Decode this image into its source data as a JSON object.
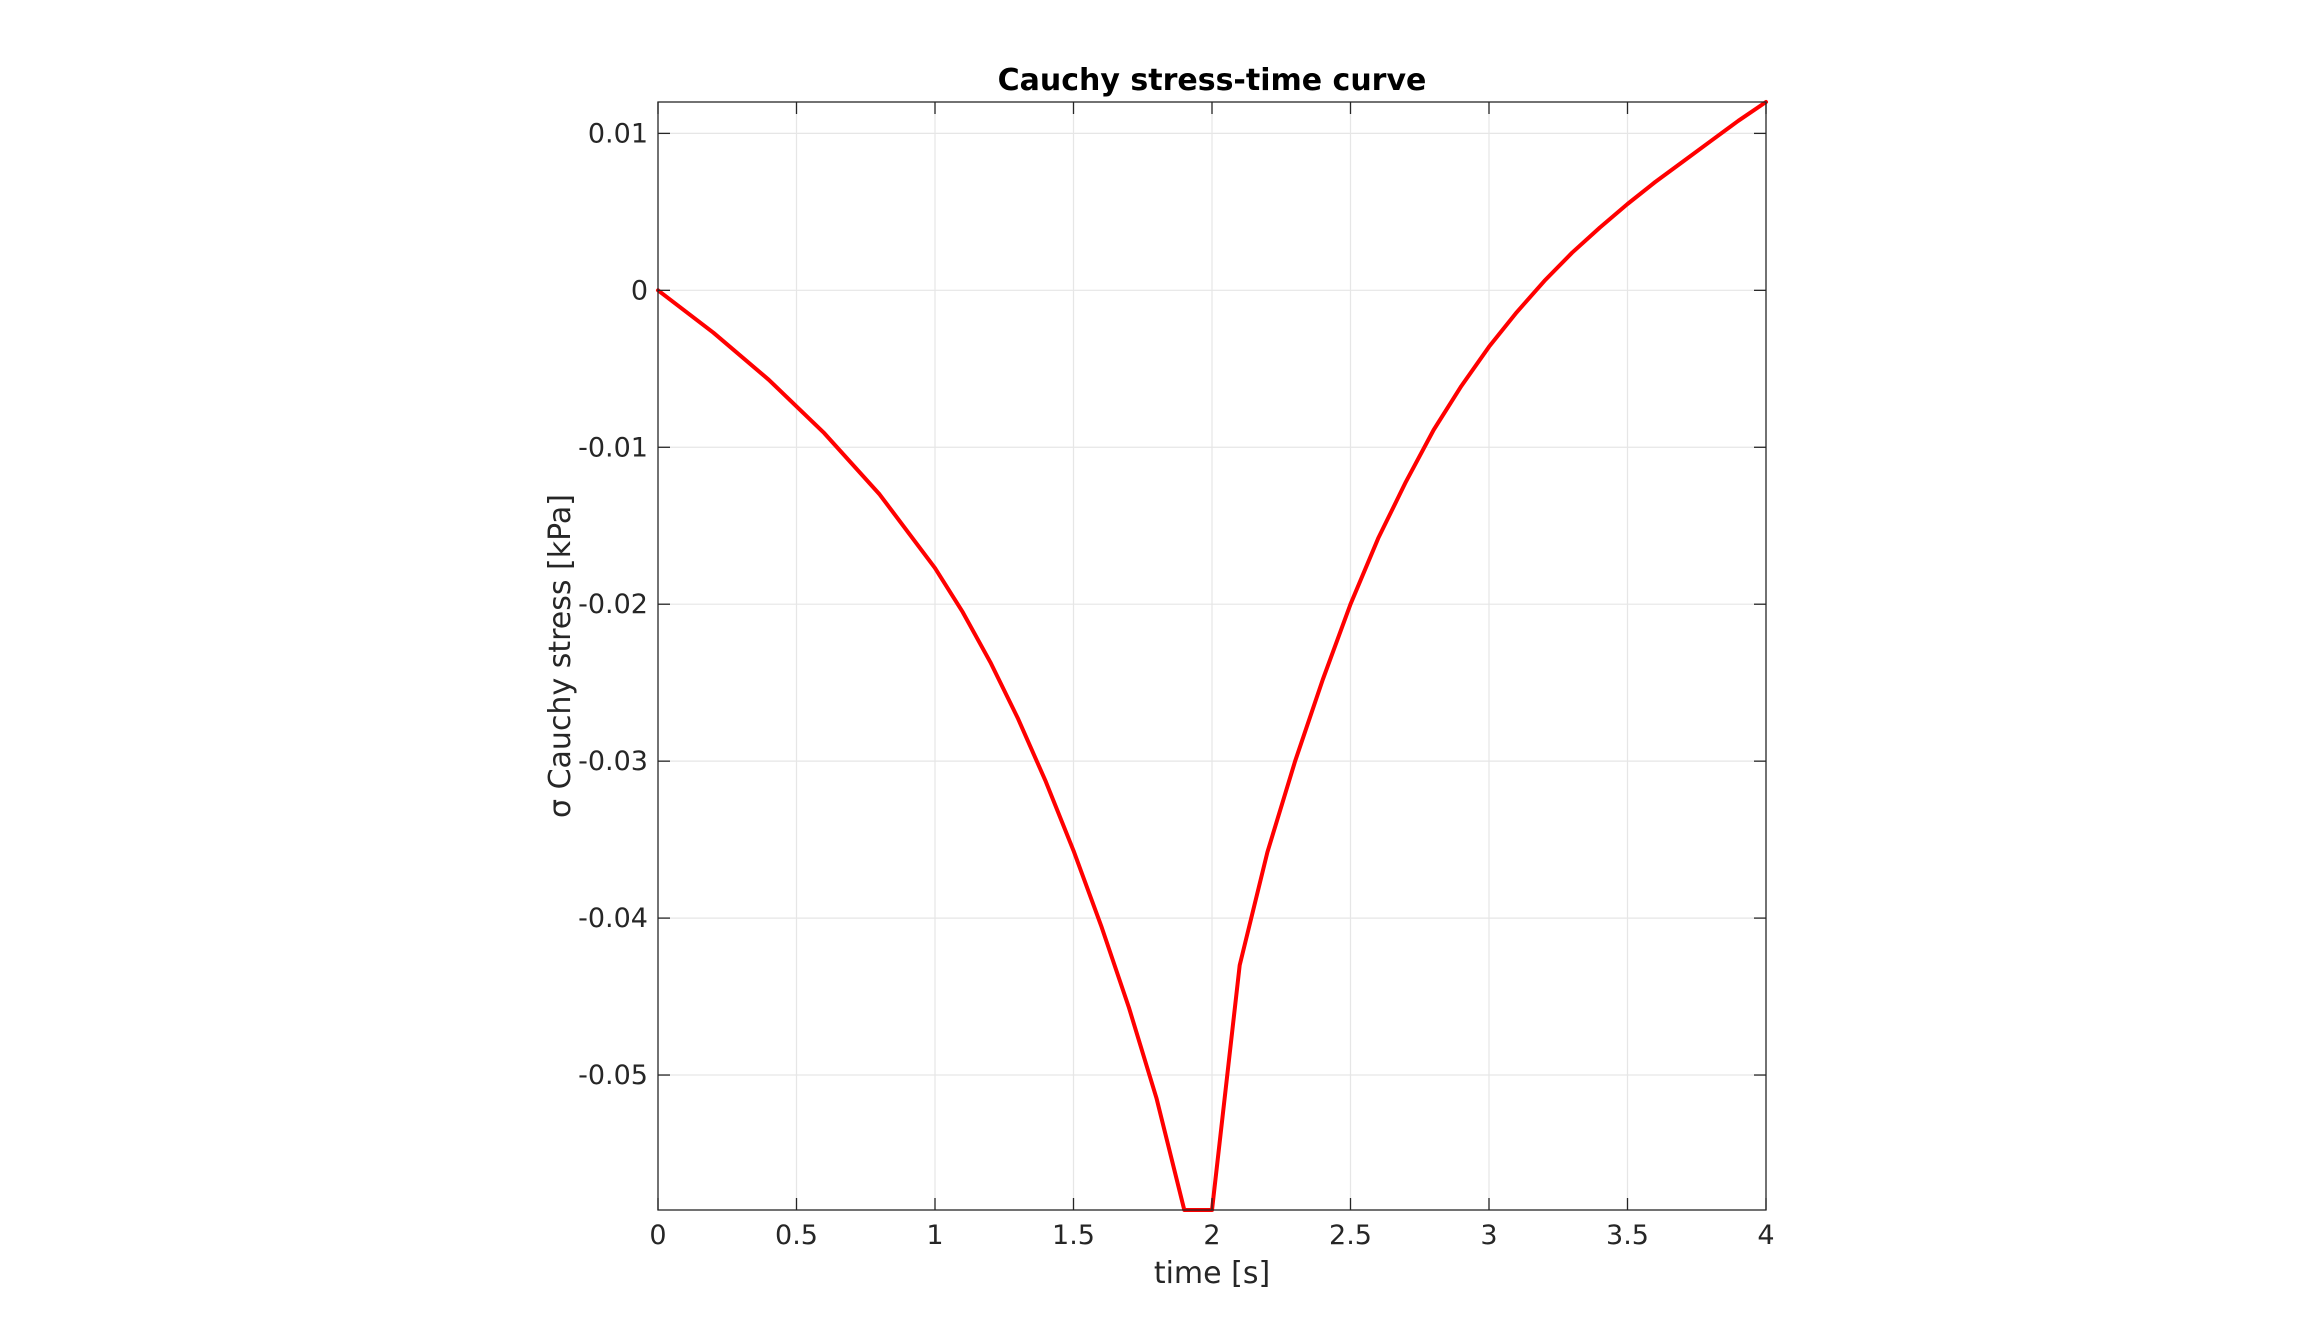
{
  "chart_data": {
    "type": "line",
    "title": "Cauchy stress-time curve",
    "xlabel": "time [s]",
    "ylabel": "σ Cauchy stress [kPa]",
    "xlim": [
      0,
      4
    ],
    "ylim": [
      -0.0586,
      0.012
    ],
    "xticks": [
      0,
      0.5,
      1,
      1.5,
      2,
      2.5,
      3,
      3.5,
      4
    ],
    "xtick_labels": [
      "0",
      "0.5",
      "1",
      "1.5",
      "2",
      "2.5",
      "3",
      "3.5",
      "4"
    ],
    "yticks": [
      0.01,
      0,
      -0.01,
      -0.02,
      -0.03,
      -0.04,
      -0.05
    ],
    "ytick_labels": [
      "0.01",
      "0",
      "-0.01",
      "-0.02",
      "-0.03",
      "-0.04",
      "-0.05"
    ],
    "grid": true,
    "series": [
      {
        "color": "#ff0000",
        "x": [
          0,
          0.2,
          0.4,
          0.6,
          0.8,
          1.0,
          1.1,
          1.2,
          1.3,
          1.4,
          1.5,
          1.6,
          1.7,
          1.8,
          1.9,
          2.0,
          2.1,
          2.2,
          2.3,
          2.4,
          2.5,
          2.6,
          2.7,
          2.8,
          2.9,
          3.0,
          3.1,
          3.2,
          3.3,
          3.4,
          3.5,
          3.6,
          3.7,
          3.8,
          3.9,
          4.0
        ],
        "y": [
          0,
          -0.0027,
          -0.0057,
          -0.0091,
          -0.013,
          -0.0177,
          -0.0205,
          -0.0237,
          -0.0273,
          -0.0313,
          -0.0357,
          -0.0405,
          -0.0457,
          -0.0515,
          -0.0586,
          -0.0586,
          -0.043,
          -0.0358,
          -0.03,
          -0.0248,
          -0.02,
          -0.0158,
          -0.0122,
          -0.0089,
          -0.0061,
          -0.0036,
          -0.0014,
          0.0006,
          0.0024,
          0.004,
          0.0055,
          0.0069,
          0.0082,
          0.0095,
          0.0108,
          0.012
        ]
      }
    ]
  }
}
